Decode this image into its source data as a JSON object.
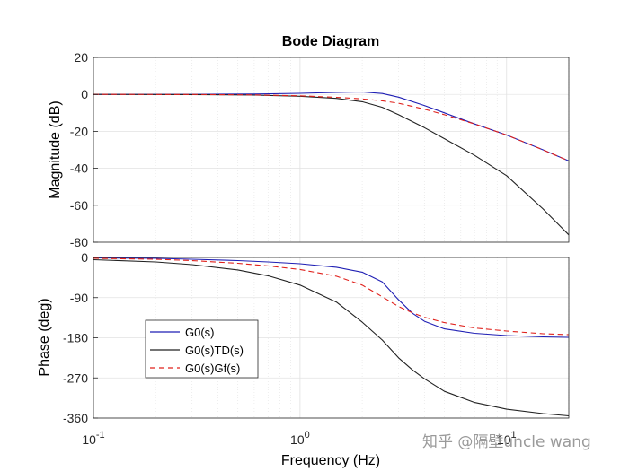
{
  "chart_data": {
    "type": "line",
    "title": "Bode Diagram",
    "xlabel": "Frequency  (Hz)",
    "xscale": "log",
    "xlim": [
      0.1,
      20
    ],
    "x_ticks": [
      {
        "value": 0.1,
        "base": "10",
        "exp": "-1"
      },
      {
        "value": 1,
        "base": "10",
        "exp": "0"
      },
      {
        "value": 10,
        "base": "10",
        "exp": "1"
      }
    ],
    "legend": {
      "location": "lower-left of phase panel",
      "entries": [
        {
          "label": "G0(s)",
          "color": "#1f1fb4",
          "dash": "solid"
        },
        {
          "label": "G0(s)TD(s)",
          "color": "#222222",
          "dash": "solid"
        },
        {
          "label": "G0(s)Gf(s)",
          "color": "#e0201b",
          "dash": "dashed"
        }
      ]
    },
    "panels": [
      {
        "name": "magnitude",
        "ylabel": "Magnitude (dB)",
        "ylim": [
          -80,
          20
        ],
        "y_ticks": [
          "20",
          "0",
          "-20",
          "-40",
          "-60",
          "-80"
        ],
        "grid": true,
        "series": [
          {
            "name": "G0(s)",
            "color": "#1f1fb4",
            "dash": "solid",
            "x": [
              0.1,
              0.3,
              0.6,
              1.0,
              1.5,
              2.0,
              2.5,
              3.0,
              4.0,
              5.0,
              7.0,
              10.0,
              15.0,
              20.0
            ],
            "y": [
              0,
              0,
              0.2,
              0.6,
              1.1,
              1.3,
              0.5,
              -1.5,
              -6,
              -10,
              -16,
              -22,
              -30,
              -36
            ]
          },
          {
            "name": "G0(s)TD(s)",
            "color": "#222222",
            "dash": "solid",
            "x": [
              0.1,
              0.3,
              0.6,
              1.0,
              1.5,
              2.0,
              2.5,
              3.0,
              4.0,
              5.0,
              7.0,
              10.0,
              15.0,
              20.0
            ],
            "y": [
              0,
              -0.1,
              -0.4,
              -1.0,
              -2.2,
              -4,
              -7,
              -11,
              -18,
              -24,
              -33,
              -44,
              -62,
              -76
            ]
          },
          {
            "name": "G0(s)Gf(s)",
            "color": "#e0201b",
            "dash": "dashed",
            "x": [
              0.1,
              0.3,
              0.6,
              1.0,
              1.5,
              2.0,
              2.5,
              3.0,
              4.0,
              5.0,
              7.0,
              10.0,
              15.0,
              20.0
            ],
            "y": [
              0,
              -0.05,
              -0.3,
              -0.8,
              -1.6,
              -2.5,
              -3.5,
              -4.8,
              -8,
              -11,
              -16,
              -22,
              -30,
              -36
            ]
          }
        ]
      },
      {
        "name": "phase",
        "ylabel": "Phase (deg)",
        "ylim": [
          -360,
          0
        ],
        "y_ticks": [
          "0",
          "-90",
          "-180",
          "-270",
          "-360"
        ],
        "grid": true,
        "series": [
          {
            "name": "G0(s)",
            "color": "#1f1fb4",
            "dash": "solid",
            "x": [
              0.1,
              0.2,
              0.3,
              0.5,
              0.7,
              1.0,
              1.5,
              2.0,
              2.5,
              3.0,
              3.5,
              4.0,
              5.0,
              7.0,
              10.0,
              15.0,
              20.0
            ],
            "y": [
              -1,
              -2,
              -4,
              -7,
              -10,
              -14,
              -22,
              -33,
              -55,
              -95,
              -125,
              -143,
              -160,
              -170,
              -175,
              -178,
              -179
            ]
          },
          {
            "name": "G0(s)TD(s)",
            "color": "#222222",
            "dash": "solid",
            "x": [
              0.1,
              0.2,
              0.3,
              0.5,
              0.7,
              1.0,
              1.5,
              2.0,
              2.5,
              3.0,
              3.5,
              4.0,
              5.0,
              7.0,
              10.0,
              15.0,
              20.0
            ],
            "y": [
              -5,
              -10,
              -16,
              -28,
              -41,
              -62,
              -100,
              -145,
              -185,
              -225,
              -252,
              -272,
              -300,
              -325,
              -340,
              -350,
              -355
            ]
          },
          {
            "name": "G0(s)Gf(s)",
            "color": "#e0201b",
            "dash": "dashed",
            "x": [
              0.1,
              0.2,
              0.3,
              0.5,
              0.7,
              1.0,
              1.5,
              2.0,
              2.5,
              3.0,
              3.5,
              4.0,
              5.0,
              7.0,
              10.0,
              15.0,
              20.0
            ],
            "y": [
              -2,
              -4,
              -7,
              -13,
              -19,
              -27,
              -42,
              -62,
              -88,
              -110,
              -124,
              -134,
              -146,
              -158,
              -165,
              -171,
              -173
            ]
          }
        ]
      }
    ]
  },
  "watermark": "知乎 @隔壁uncle wang"
}
